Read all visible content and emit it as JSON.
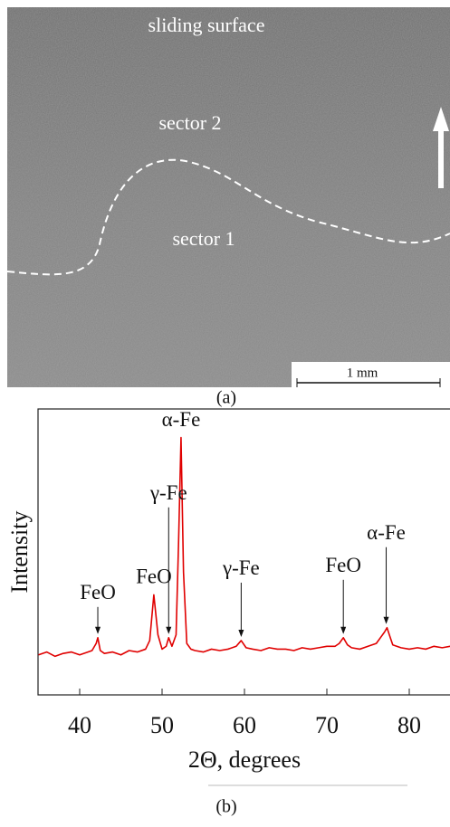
{
  "figure_a": {
    "labels": [
      "sliding surface",
      "sector 2",
      "sector 1"
    ],
    "scale_bar": "1 mm"
  },
  "panel_labels": [
    "(a)",
    "(b)"
  ],
  "chart_data": {
    "type": "line",
    "x_label": "2Θ, degrees",
    "y_label": "Intensity",
    "x": [
      35,
      36,
      37,
      38,
      39,
      40,
      41,
      41.5,
      42,
      42.2,
      42.5,
      43,
      44,
      45,
      46,
      47,
      48,
      48.5,
      49,
      49.5,
      50,
      50.5,
      50.8,
      51.2,
      51.7,
      52,
      52.3,
      52.6,
      53,
      53.5,
      54,
      55,
      56,
      57,
      58,
      59,
      59.6,
      60.2,
      61,
      62,
      63,
      64,
      65,
      66,
      67,
      68,
      69,
      70,
      71,
      71.5,
      72,
      72.5,
      73,
      74,
      75,
      76,
      76.5,
      77,
      77.3,
      77.7,
      78,
      79,
      80,
      81,
      82,
      83,
      84,
      85
    ],
    "series": [
      {
        "color": "#e00000",
        "values": [
          14,
          15,
          13.5,
          14.5,
          15,
          14,
          15,
          15.5,
          18,
          20,
          15.5,
          14.5,
          15,
          14,
          15.5,
          15,
          16,
          19,
          35,
          21,
          16,
          17,
          20,
          17,
          21,
          53,
          90,
          43,
          18,
          16,
          15.5,
          15,
          16,
          15.5,
          16,
          17,
          19,
          16.5,
          16,
          15.5,
          16.5,
          16,
          16,
          15.5,
          16.5,
          16,
          16.5,
          17,
          17,
          18,
          20,
          17.5,
          16.5,
          16,
          17,
          18,
          20,
          22,
          23.5,
          20,
          17.5,
          16.5,
          16,
          16.5,
          16,
          17,
          16.5,
          17
        ]
      }
    ],
    "xlim": [
      35,
      85
    ],
    "xticks": [
      40,
      50,
      60,
      70,
      80
    ],
    "ylim": [
      0,
      100
    ],
    "annotations": [
      {
        "text": "FeO",
        "x": 42.2,
        "y": 20
      },
      {
        "text": "FeO",
        "x": 49,
        "y": 35
      },
      {
        "text": "γ-Fe",
        "x": 50.8,
        "y": 20
      },
      {
        "text": "α-Fe",
        "x": 52.3,
        "y": 90
      },
      {
        "text": "γ-Fe",
        "x": 59.6,
        "y": 19
      },
      {
        "text": "FeO",
        "x": 72,
        "y": 20
      },
      {
        "text": "α-Fe",
        "x": 77.2,
        "y": 23.5
      }
    ]
  }
}
